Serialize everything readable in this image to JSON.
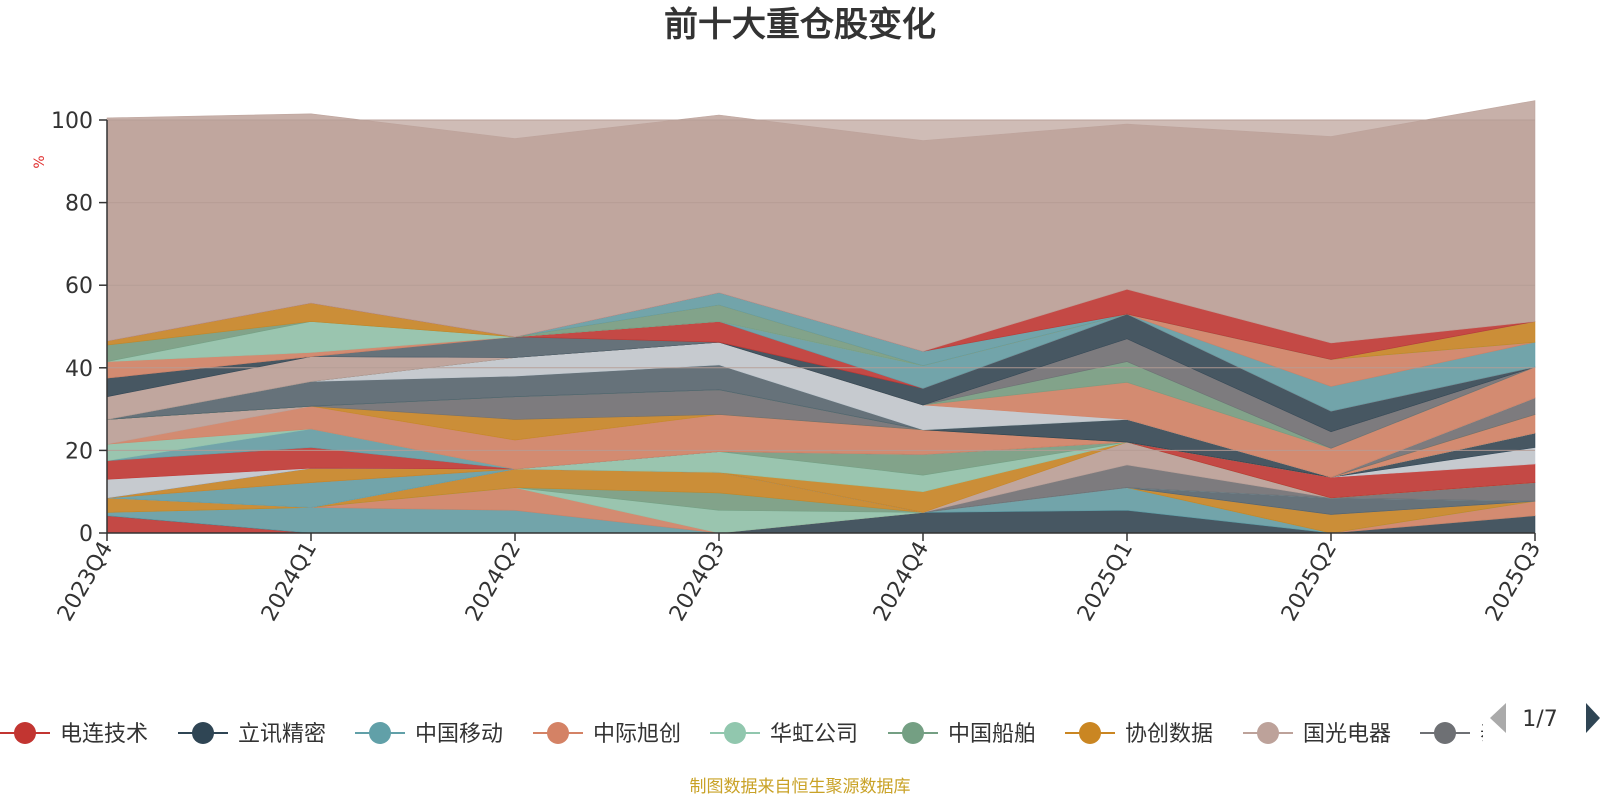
{
  "chart_data": {
    "type": "area",
    "stacked": true,
    "title": "前十大重仓股变化",
    "ylabel": "%",
    "ylim": [
      0,
      100
    ],
    "yticks": [
      0,
      20,
      40,
      60,
      80,
      100
    ],
    "grid": true,
    "categories": [
      "2023Q4",
      "2024Q1",
      "2024Q2",
      "2024Q3",
      "2024Q4",
      "2025Q1",
      "2025Q2",
      "2025Q3"
    ],
    "series": [
      {
        "name": "电连技术",
        "color": "#c23531",
        "values": [
          4.2,
          0,
          0,
          0,
          0,
          0,
          0,
          0
        ]
      },
      {
        "name": "立讯精密",
        "color": "#2f4554",
        "values": [
          0,
          0,
          0,
          0,
          5.0,
          5.5,
          0,
          4.2
        ]
      },
      {
        "name": "中国移动",
        "color": "#61a0a8",
        "values": [
          0.8,
          6.2,
          5.5,
          0,
          0,
          5.5,
          0,
          0
        ]
      },
      {
        "name": "中际旭创",
        "color": "#d48265",
        "values": [
          0,
          0,
          5.5,
          0,
          0,
          0,
          0,
          3.5
        ]
      },
      {
        "name": "华虹公司",
        "color": "#91c7ae",
        "values": [
          0,
          0,
          0,
          5.5,
          0,
          0,
          0,
          0
        ]
      },
      {
        "name": "中国船舶",
        "color": "#749f83",
        "values": [
          0,
          0,
          0,
          4.2,
          0,
          0,
          0,
          0
        ]
      },
      {
        "name": "协创数据",
        "color": "#ca8622",
        "values": [
          3.5,
          0,
          4.5,
          5.0,
          0,
          0,
          4.5,
          0
        ]
      },
      {
        "name": "国光电器",
        "color": "#bda29a",
        "values": [
          0,
          0,
          0,
          0,
          0,
          0,
          0,
          0
        ]
      },
      {
        "name": "泰豪科技",
        "color": "#6e7074",
        "values": [
          0,
          0,
          0,
          0,
          0,
          0,
          0,
          0
        ]
      },
      {
        "name": "",
        "color": "#546570",
        "values": [
          0,
          0,
          0,
          0,
          0,
          0,
          4.0,
          0
        ]
      },
      {
        "name": "",
        "color": "#c4ccd3",
        "values": [
          0,
          0,
          0,
          0,
          0,
          0,
          0,
          0
        ]
      },
      {
        "name": "",
        "color": "#61a0a8",
        "values": [
          0,
          6.0,
          0,
          0,
          0,
          0,
          0,
          0
        ]
      },
      {
        "name": "",
        "color": "#6e7074",
        "values": [
          0,
          0,
          0,
          0,
          0,
          5.5,
          0,
          4.5
        ]
      },
      {
        "name": "",
        "color": "#bda29a",
        "values": [
          0,
          0,
          0,
          0,
          0,
          5.5,
          0,
          0
        ]
      },
      {
        "name": "",
        "color": "#ca8622",
        "values": [
          0,
          3.5,
          0,
          0,
          5.0,
          0,
          0,
          0
        ]
      },
      {
        "name": "",
        "color": "#91c7ae",
        "values": [
          0,
          0,
          0,
          5.0,
          4.0,
          0,
          0,
          0
        ]
      },
      {
        "name": "",
        "color": "#749f83",
        "values": [
          0,
          0,
          0,
          0,
          5.0,
          0,
          0,
          0
        ]
      },
      {
        "name": "",
        "color": "#c23531",
        "values": [
          0,
          0,
          0,
          0,
          0,
          0,
          5.0,
          4.5
        ]
      },
      {
        "name": "",
        "color": "#c4ccd3",
        "values": [
          0,
          0,
          0,
          0,
          0,
          0,
          0,
          4.0
        ]
      },
      {
        "name": "",
        "color": "#2f4554",
        "values": [
          0,
          0,
          0,
          0,
          0,
          0,
          0,
          3.5
        ]
      },
      {
        "name": "",
        "color": "#c4ccd3",
        "values": [
          4.5,
          0,
          0,
          0,
          0,
          0,
          0,
          0
        ]
      },
      {
        "name": "",
        "color": "#c23531",
        "values": [
          4.5,
          5.0,
          0,
          0,
          0,
          0,
          0,
          0
        ]
      },
      {
        "name": "",
        "color": "#61a0a8",
        "values": [
          0,
          4.5,
          0,
          0,
          0,
          0,
          0,
          0
        ]
      },
      {
        "name": "",
        "color": "#91c7ae",
        "values": [
          4.0,
          0,
          0,
          0,
          0,
          0,
          0,
          0
        ]
      },
      {
        "name": "",
        "color": "#d48265",
        "values": [
          0,
          5.5,
          7.0,
          9.0,
          6.0,
          0,
          0,
          4.5
        ]
      },
      {
        "name": "",
        "color": "#bda29a",
        "values": [
          6.0,
          0,
          0,
          0,
          0,
          0,
          0,
          0
        ]
      },
      {
        "name": "",
        "color": "#ca8622",
        "values": [
          0,
          0,
          5.0,
          0,
          0,
          0,
          0,
          0
        ]
      },
      {
        "name": "",
        "color": "#6e7074",
        "values": [
          0,
          0,
          5.5,
          6.0,
          0,
          0,
          0,
          4.0
        ]
      },
      {
        "name": "",
        "color": "#2f4554",
        "values": [
          0,
          0,
          0,
          0,
          0,
          5.5,
          0,
          0
        ]
      },
      {
        "name": "",
        "color": "#749f83",
        "values": [
          0,
          0,
          0,
          0,
          0,
          0,
          0,
          0
        ]
      },
      {
        "name": "",
        "color": "#546570",
        "values": [
          0,
          6.0,
          5.0,
          6.0,
          0,
          0,
          0,
          0
        ]
      },
      {
        "name": "",
        "color": "#c4ccd3",
        "values": [
          0,
          0,
          4.5,
          5.5,
          6.0,
          0,
          0,
          0
        ]
      },
      {
        "name": "",
        "color": "#d48265",
        "values": [
          0,
          0,
          0,
          0,
          0,
          9.0,
          7.0,
          7.5
        ]
      },
      {
        "name": "",
        "color": "#749f83",
        "values": [
          0,
          0,
          0,
          0,
          0,
          5.0,
          0,
          0
        ]
      },
      {
        "name": "",
        "color": "#6e7074",
        "values": [
          0,
          0,
          0,
          0,
          0,
          5.5,
          4.0,
          0
        ]
      },
      {
        "name": "",
        "color": "#bda29a",
        "values": [
          5.5,
          6.0,
          0,
          0,
          0,
          0,
          0,
          0
        ]
      },
      {
        "name": "",
        "color": "#2f4554",
        "values": [
          4.5,
          0,
          0,
          0,
          4.0,
          6.0,
          5.0,
          0
        ]
      },
      {
        "name": "",
        "color": "#546570",
        "values": [
          0,
          0,
          5.0,
          0,
          0,
          0,
          0,
          0
        ]
      },
      {
        "name": "",
        "color": "#c23531",
        "values": [
          0,
          0,
          0,
          5.0,
          0,
          0,
          0,
          0
        ]
      },
      {
        "name": "",
        "color": "#61a0a8",
        "values": [
          0,
          0,
          0,
          0,
          5.5,
          0,
          6.0,
          6.0
        ]
      },
      {
        "name": "",
        "color": "#d48265",
        "values": [
          4.0,
          1.0,
          0,
          0,
          0,
          0,
          6.5,
          0
        ]
      },
      {
        "name": "",
        "color": "#91c7ae",
        "values": [
          0,
          7.5,
          0,
          0,
          0,
          0,
          0,
          0
        ]
      },
      {
        "name": "",
        "color": "#749f83",
        "values": [
          4.0,
          0,
          0,
          4.0,
          0,
          0,
          0,
          0
        ]
      },
      {
        "name": "",
        "color": "#ca8622",
        "values": [
          1.0,
          4.5,
          0,
          0,
          0,
          0,
          0,
          5.0
        ]
      },
      {
        "name": "",
        "color": "#61a0a8",
        "values": [
          0,
          0,
          0,
          3.0,
          3.5,
          0,
          0,
          0
        ]
      },
      {
        "name": "",
        "color": "#c23531",
        "values": [
          0,
          0,
          0,
          0,
          0,
          6.0,
          4.0,
          0
        ]
      },
      {
        "name": "",
        "color": "#bda29a",
        "values": [
          54.0,
          45.8,
          48.0,
          43.0,
          51.0,
          40.0,
          50.0,
          53.5
        ]
      }
    ],
    "legend": {
      "position": "bottom",
      "page": "1/7"
    },
    "source": "制图数据来自恒生聚源数据库"
  }
}
